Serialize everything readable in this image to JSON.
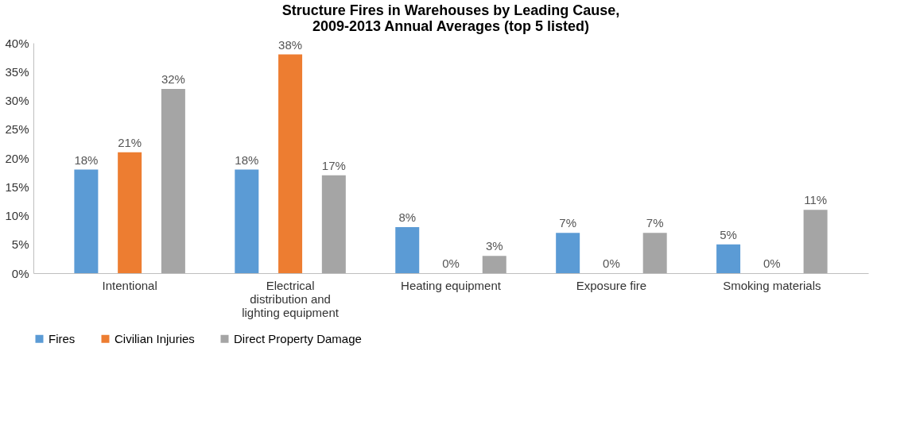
{
  "chart_data": {
    "type": "bar",
    "title": "Structure Fires in Warehouses by Leading Cause, 2009-2013 Annual Averages (top 5 listed)",
    "categories": [
      "Intentional",
      "Electrical distribution and lighting equipment",
      "Heating equipment",
      "Exposure fire",
      "Smoking materials"
    ],
    "series": [
      {
        "name": "Fires",
        "color": "#5b9bd5",
        "values": [
          18,
          18,
          8,
          7,
          5
        ],
        "value_labels": [
          "18%",
          "18%",
          "8%",
          "7%",
          "5%"
        ]
      },
      {
        "name": "Civilian Injuries",
        "color": "#ed7d31",
        "values": [
          21,
          38,
          0,
          0,
          0
        ],
        "value_labels": [
          "21%",
          "38%",
          "0%",
          "0%",
          "0%"
        ]
      },
      {
        "name": "Direct Property Damage",
        "color": "#a5a5a5",
        "values": [
          32,
          17,
          3,
          7,
          11
        ],
        "value_labels": [
          "32%",
          "17%",
          "3%",
          "7%",
          "11%"
        ]
      }
    ],
    "ylim": [
      0,
      40
    ],
    "yticks": [
      {
        "value": 0,
        "label": "0%"
      },
      {
        "value": 5,
        "label": "5%"
      },
      {
        "value": 10,
        "label": "10%"
      },
      {
        "value": 15,
        "label": "15%"
      },
      {
        "value": 20,
        "label": "20%"
      },
      {
        "value": 25,
        "label": "25%"
      },
      {
        "value": 30,
        "label": "30%"
      },
      {
        "value": 35,
        "label": "35%"
      },
      {
        "value": 40,
        "label": "40%"
      }
    ],
    "grid": false,
    "legend": "bottom"
  }
}
